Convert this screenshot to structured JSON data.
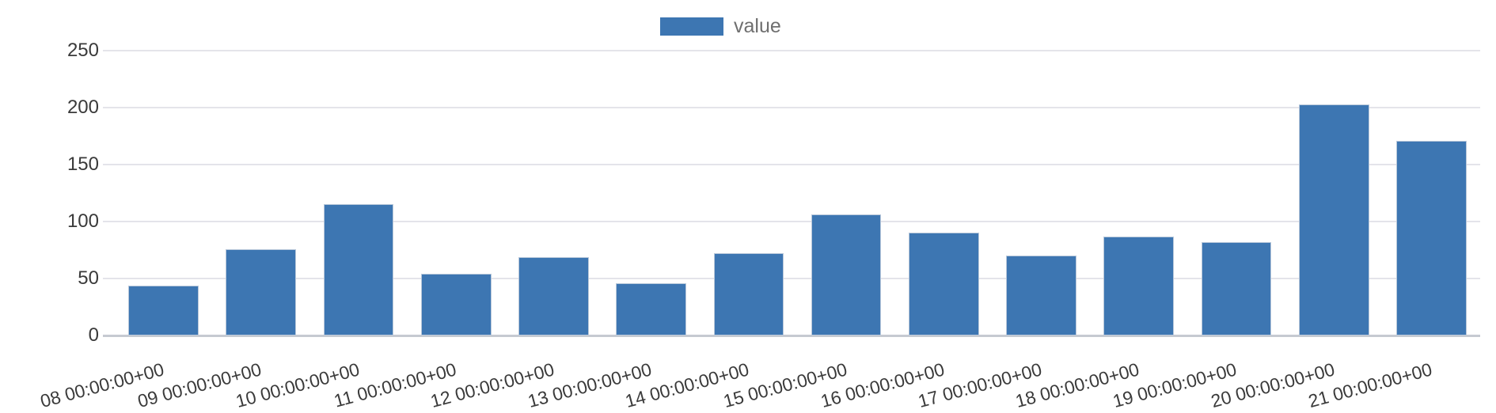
{
  "legend": {
    "label": "value"
  },
  "colors": {
    "bar": "#3d76b2",
    "bar_edge": "#b9c8da",
    "grid_line": "#e4e4ea",
    "axis_line": "#c6cad1",
    "axis_text": "#3a3a3a",
    "legend_text": "#6f6f6f"
  },
  "chart_data": {
    "type": "bar",
    "title": "",
    "xlabel": "",
    "ylabel": "",
    "series_name": "value",
    "categories": [
      "08 00:00:00+00",
      "09 00:00:00+00",
      "10 00:00:00+00",
      "11 00:00:00+00",
      "12 00:00:00+00",
      "13 00:00:00+00",
      "14 00:00:00+00",
      "15 00:00:00+00",
      "16 00:00:00+00",
      "17 00:00:00+00",
      "18 00:00:00+00",
      "19 00:00:00+00",
      "20 00:00:00+00",
      "21 00:00:00+00"
    ],
    "values": [
      44,
      76,
      115,
      54,
      69,
      46,
      72,
      106,
      90,
      70,
      87,
      82,
      203,
      171
    ],
    "ylim": [
      0,
      250
    ],
    "yticks": [
      0,
      50,
      100,
      150,
      200,
      250
    ],
    "grid": true,
    "legend_position": "top-center",
    "x_tick_rotation_deg": -15,
    "x_labels_clipped_at_bottom": true
  }
}
